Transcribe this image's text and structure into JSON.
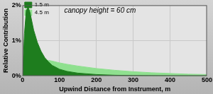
{
  "chart_data": {
    "type": "area",
    "annotation": "canopy height = 60 cm",
    "x_label": "Upwind Distance from Instrument, m",
    "y_label": "Relative Contribution",
    "x": [
      0,
      5,
      10,
      15,
      20,
      25,
      30,
      40,
      50,
      60,
      70,
      80,
      100,
      120,
      150,
      200,
      250,
      300,
      350,
      400,
      450,
      500
    ],
    "series": [
      {
        "name": "1.5 m",
        "color": "#1e7d1e",
        "values": [
          0,
          1.2,
          1.85,
          1.95,
          1.8,
          1.55,
          1.3,
          0.95,
          0.7,
          0.52,
          0.4,
          0.3,
          0.19,
          0.13,
          0.08,
          0.04,
          0.02,
          0.01,
          0.005,
          0,
          0,
          0
        ]
      },
      {
        "name": "4.5 m",
        "color": "#8fe08f",
        "values": [
          0,
          0,
          0.02,
          0.08,
          0.16,
          0.24,
          0.31,
          0.4,
          0.44,
          0.45,
          0.44,
          0.42,
          0.37,
          0.33,
          0.28,
          0.21,
          0.16,
          0.12,
          0.09,
          0.07,
          0.05,
          0.04
        ]
      }
    ],
    "xlim": [
      0,
      500
    ],
    "xticks": [
      0,
      100,
      200,
      300,
      400,
      500
    ],
    "ylim": [
      0,
      2
    ],
    "yticks": [
      {
        "value": 0,
        "label": "0%"
      },
      {
        "value": 1,
        "label": "1%"
      },
      {
        "value": 2,
        "label": "2%"
      }
    ],
    "grid": true,
    "legend": "upper right"
  }
}
